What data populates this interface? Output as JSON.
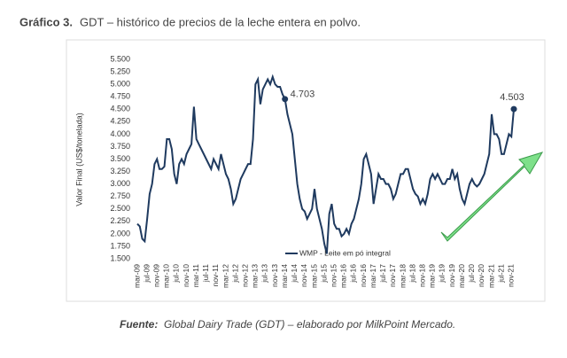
{
  "chart_data": {
    "type": "line",
    "title": "Gráfico 3.",
    "subtitle": "GDT – histórico de precios de la leche entera en polvo.",
    "y_label": "Valor Final (US$/tonelada)",
    "source_label": "Fuente:",
    "source": "Global Dairy Trade (GDT) – elaborado por MilkPoint Mercado.",
    "categories": [
      "mar-09",
      null,
      null,
      null,
      "jul-09",
      null,
      null,
      null,
      "nov-09",
      null,
      null,
      null,
      "mar-10",
      null,
      null,
      null,
      "jul-10",
      null,
      null,
      null,
      "nov-10",
      null,
      null,
      null,
      "mar-11",
      null,
      null,
      null,
      "jul-11",
      null,
      null,
      null,
      "nov-11",
      null,
      null,
      null,
      "mar-12",
      null,
      null,
      null,
      "jul-12",
      null,
      null,
      null,
      "nov-12",
      null,
      null,
      null,
      "mar-13",
      null,
      null,
      null,
      "jul-13",
      null,
      null,
      null,
      "nov-13",
      null,
      null,
      null,
      "mar-14",
      null,
      null,
      null,
      "jul-14",
      null,
      null,
      null,
      "nov-14",
      null,
      null,
      null,
      "mar-15",
      null,
      null,
      null,
      "jul-15",
      null,
      null,
      null,
      "nov-15",
      null,
      null,
      null,
      "mar-16",
      null,
      null,
      null,
      "jul-16",
      null,
      null,
      null,
      "nov-16",
      null,
      null,
      null,
      "mar-17",
      null,
      null,
      null,
      "jul-17",
      null,
      null,
      null,
      "nov-17",
      null,
      null,
      null,
      "mar-18",
      null,
      null,
      null,
      "jul-18",
      null,
      null,
      null,
      "nov-18",
      null,
      null,
      null,
      "mar-19",
      null,
      null,
      null,
      "jul-19",
      null,
      null,
      null,
      "nov-19",
      null,
      null,
      null,
      "mar-20",
      null,
      null,
      null,
      "jul-20",
      null,
      null,
      null,
      "nov-20",
      null,
      null,
      null,
      "mar-21",
      null,
      null,
      null,
      "jul-21",
      null,
      null,
      null,
      "nov-21",
      null
    ],
    "series": [
      {
        "name": "WMP - Leite em pó integral",
        "color": "#1f3a5f",
        "values": [
          2200,
          2150,
          1900,
          1850,
          2300,
          2800,
          3000,
          3400,
          3500,
          3300,
          3300,
          3350,
          3900,
          3900,
          3700,
          3200,
          3000,
          3400,
          3500,
          3400,
          3600,
          3700,
          3800,
          4550,
          3900,
          3800,
          3700,
          3600,
          3500,
          3400,
          3300,
          3500,
          3400,
          3300,
          3600,
          3400,
          3200,
          3100,
          2900,
          2600,
          2700,
          2900,
          3100,
          3200,
          3300,
          3400,
          3400,
          3900,
          5000,
          5100,
          4600,
          4900,
          5000,
          5100,
          5000,
          5150,
          5000,
          4950,
          4950,
          4800,
          4703,
          4400,
          4200,
          4000,
          3500,
          3000,
          2700,
          2500,
          2450,
          2300,
          2400,
          2500,
          2900,
          2500,
          2300,
          2100,
          1800,
          1600,
          2400,
          2600,
          2200,
          2100,
          2100,
          1950,
          2000,
          2100,
          2000,
          2200,
          2300,
          2500,
          2700,
          3000,
          3500,
          3600,
          3400,
          3200,
          2600,
          2900,
          3200,
          3100,
          3100,
          3000,
          3000,
          2900,
          2700,
          2800,
          3000,
          3200,
          3200,
          3300,
          3300,
          3100,
          2900,
          2800,
          2750,
          2600,
          2700,
          2600,
          2800,
          3100,
          3200,
          3100,
          3200,
          3100,
          3000,
          3000,
          3100,
          3100,
          3300,
          3100,
          3200,
          2900,
          2700,
          2600,
          2800,
          3000,
          3100,
          3000,
          2950,
          3000,
          3100,
          3200,
          3400,
          3600,
          4400,
          4000,
          4000,
          3900,
          3600,
          3600,
          3800,
          4000,
          3950,
          4503
        ],
        "value_labels": [
          null,
          null,
          null,
          null,
          null,
          null,
          null,
          null,
          null,
          null,
          null,
          null,
          null,
          null,
          null,
          null,
          null,
          null,
          null,
          null,
          null,
          null,
          null,
          null,
          null,
          null,
          null,
          null,
          null,
          null,
          null,
          null,
          null,
          null,
          null,
          null,
          null,
          null,
          null,
          null,
          null,
          null,
          null,
          null,
          null,
          null,
          null,
          null,
          null,
          null,
          null,
          null,
          null,
          null,
          null,
          null,
          null,
          null,
          null,
          null,
          "4.703",
          null,
          null,
          null,
          null,
          null,
          null,
          null,
          null,
          null,
          null,
          null,
          null,
          null,
          null,
          null,
          null,
          null,
          null,
          null,
          null,
          null,
          null,
          null,
          null,
          null,
          null,
          null,
          null,
          null,
          null,
          null,
          null,
          null,
          null,
          null,
          null,
          null,
          null,
          null,
          null,
          null,
          null,
          null,
          null,
          null,
          null,
          null,
          null,
          null,
          null,
          null,
          null,
          null,
          null,
          null,
          null,
          null,
          null,
          null,
          null,
          null,
          null,
          null,
          null,
          null,
          null,
          null,
          null,
          null,
          null,
          null,
          null,
          null,
          null,
          null,
          null,
          null,
          null,
          null,
          null,
          null,
          null,
          null,
          null,
          null,
          null,
          null,
          null,
          null,
          null,
          null,
          null,
          "4.503"
        ]
      }
    ],
    "ylim": [
      1500,
      5500
    ],
    "yticks": [
      {
        "value": 1500,
        "label": "1.500"
      },
      {
        "value": 1750,
        "label": "1.750"
      },
      {
        "value": 2000,
        "label": "2.000"
      },
      {
        "value": 2250,
        "label": "2.250"
      },
      {
        "value": 2500,
        "label": "2.500"
      },
      {
        "value": 2750,
        "label": "2.750"
      },
      {
        "value": 3000,
        "label": "3.000"
      },
      {
        "value": 3250,
        "label": "3.250"
      },
      {
        "value": 3500,
        "label": "3.500"
      },
      {
        "value": 3750,
        "label": "3.750"
      },
      {
        "value": 4000,
        "label": "4.000"
      },
      {
        "value": 4250,
        "label": "4.250"
      },
      {
        "value": 4500,
        "label": "4.500"
      },
      {
        "value": 4750,
        "label": "4.750"
      },
      {
        "value": 5000,
        "label": "5.000"
      },
      {
        "value": 5250,
        "label": "5.250"
      },
      {
        "value": 5500,
        "label": "5.500"
      }
    ],
    "grid": false
  }
}
